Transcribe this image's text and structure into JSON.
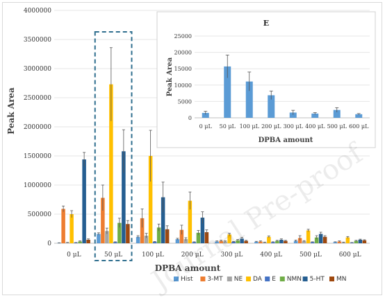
{
  "chart_data": [
    {
      "type": "bar",
      "ylabel": "Peak Area",
      "xlabel": "DPBA   amount",
      "ylim": [
        0,
        4000000
      ],
      "yticks": [
        "0",
        "500000",
        "1000000",
        "1500000",
        "2000000",
        "2500000",
        "3000000",
        "3500000",
        "4000000"
      ],
      "categories": [
        "0 μL",
        "50 μL",
        "100 μL",
        "200 μL",
        "300 μL",
        "400 μL",
        "500 μL",
        "600 μL"
      ],
      "grid": true,
      "legend_position": "bottom",
      "highlighted_category": "50 μL",
      "series": [
        {
          "name": "Hist",
          "color": "#5B9BD5",
          "values": [
            5000,
            160000,
            110000,
            70000,
            30000,
            25000,
            40000,
            20000
          ],
          "errors": [
            3000,
            20000,
            20000,
            15000,
            10000,
            8000,
            15000,
            5000
          ]
        },
        {
          "name": "3-MT",
          "color": "#ED7D31",
          "values": [
            590000,
            780000,
            430000,
            230000,
            40000,
            30000,
            90000,
            30000
          ],
          "errors": [
            50000,
            220000,
            160000,
            80000,
            15000,
            10000,
            40000,
            10000
          ]
        },
        {
          "name": "NE",
          "color": "#A5A5A5",
          "values": [
            10000,
            210000,
            130000,
            70000,
            30000,
            15000,
            35000,
            15000
          ],
          "errors": [
            5000,
            50000,
            40000,
            25000,
            10000,
            5000,
            10000,
            5000
          ]
        },
        {
          "name": "DA",
          "color": "#FFC000",
          "values": [
            500000,
            2730000,
            1500000,
            730000,
            150000,
            110000,
            220000,
            100000
          ],
          "errors": [
            60000,
            630000,
            440000,
            150000,
            20000,
            15000,
            20000,
            15000
          ]
        },
        {
          "name": "E",
          "color": "#4472C4",
          "values": [
            10000,
            20000,
            25000,
            20000,
            25000,
            20000,
            20000,
            10000
          ],
          "errors": [
            3000,
            5000,
            5000,
            5000,
            5000,
            5000,
            5000,
            3000
          ]
        },
        {
          "name": "NMN",
          "color": "#70AD47",
          "values": [
            30000,
            350000,
            270000,
            180000,
            50000,
            40000,
            100000,
            40000
          ],
          "errors": [
            10000,
            80000,
            60000,
            40000,
            15000,
            10000,
            30000,
            10000
          ]
        },
        {
          "name": "5-HT",
          "color": "#255E91",
          "values": [
            1440000,
            1580000,
            790000,
            440000,
            80000,
            60000,
            160000,
            60000
          ],
          "errors": [
            120000,
            370000,
            260000,
            100000,
            20000,
            15000,
            30000,
            10000
          ]
        },
        {
          "name": "MN",
          "color": "#9E480E",
          "values": [
            60000,
            330000,
            240000,
            190000,
            40000,
            40000,
            110000,
            50000
          ],
          "errors": [
            15000,
            60000,
            60000,
            40000,
            10000,
            10000,
            20000,
            10000
          ]
        }
      ]
    },
    {
      "type": "bar",
      "title": "E",
      "ylabel": "Peak Area",
      "xlabel": "DPBA   amount",
      "ylim": [
        0,
        25000
      ],
      "yticks": [
        "0",
        "5000",
        "10000",
        "15000",
        "20000",
        "25000"
      ],
      "categories": [
        "0 μL",
        "50 μL",
        "100 μL",
        "200 μL",
        "300 μL",
        "400 μL",
        "500 μL",
        "600 μL"
      ],
      "grid": true,
      "color": "#5B9BD5",
      "values": [
        1500,
        15700,
        11100,
        6900,
        1600,
        1300,
        2400,
        1100
      ],
      "errors": [
        500,
        3500,
        2900,
        1300,
        700,
        300,
        700,
        200
      ]
    }
  ],
  "watermark": "Journal Pre-proof"
}
